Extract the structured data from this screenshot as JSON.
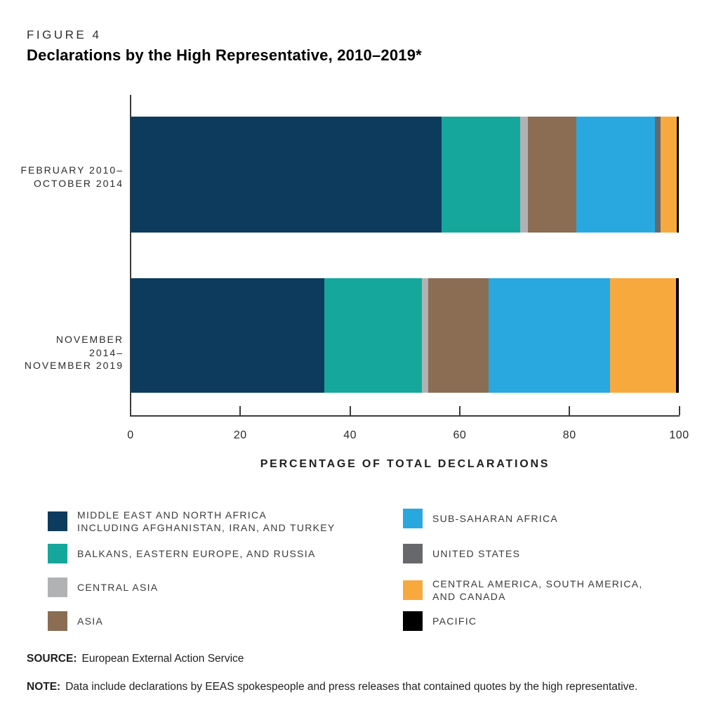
{
  "figure": {
    "label": "FIGURE 4",
    "title": "Declarations by the High Representative, 2010–2019*"
  },
  "chart_data": {
    "type": "bar",
    "orientation": "horizontal",
    "stacked": true,
    "title": "Declarations by the High Representative, 2010–2019*",
    "xlabel": "PERCENTAGE OF TOTAL DECLARATIONS",
    "xlim": [
      0,
      100
    ],
    "xticks": [
      0,
      20,
      40,
      60,
      80,
      100
    ],
    "grid": false,
    "categories": [
      [
        "FEBRUARY 2010–",
        "OCTOBER 2014"
      ],
      [
        "NOVEMBER 2014–",
        "NOVEMBER 2019"
      ]
    ],
    "series": [
      {
        "name": "MIDDLE EAST AND NORTH AFRICA INCLUDING AFGHANISTAN, IRAN, AND TURKEY",
        "color": "#0d3b5e",
        "values": [
          56.7,
          35.4
        ]
      },
      {
        "name": "BALKANS, EASTERN EUROPE, AND RUSSIA",
        "color": "#16a79c",
        "values": [
          14.4,
          17.7
        ]
      },
      {
        "name": "CENTRAL ASIA",
        "color": "#b0b2b4",
        "values": [
          1.4,
          1.2
        ]
      },
      {
        "name": "ASIA",
        "color": "#8a6d53",
        "values": [
          8.8,
          11.0
        ]
      },
      {
        "name": "SUB-SAHARAN AFRICA",
        "color": "#29a8e0",
        "values": [
          14.4,
          22.2
        ]
      },
      {
        "name": "UNITED STATES",
        "color": "#66686b",
        "values": [
          1.0,
          0
        ]
      },
      {
        "name": "CENTRAL AMERICA, SOUTH AMERICA, AND CANADA",
        "color": "#f8a93e",
        "values": [
          2.9,
          12.0
        ]
      },
      {
        "name": "PACIFIC",
        "color": "#000000",
        "values": [
          0.4,
          0.5
        ]
      }
    ],
    "legend_position": "bottom-two-columns"
  },
  "legend": {
    "left": [
      {
        "series": 0,
        "lines": [
          "MIDDLE EAST AND NORTH AFRICA",
          "INCLUDING AFGHANISTAN, IRAN, AND TURKEY"
        ]
      },
      {
        "series": 1,
        "lines": [
          "BALKANS, EASTERN EUROPE, AND RUSSIA"
        ]
      },
      {
        "series": 2,
        "lines": [
          "CENTRAL ASIA"
        ]
      },
      {
        "series": 3,
        "lines": [
          "ASIA"
        ]
      }
    ],
    "right": [
      {
        "series": 4,
        "lines": [
          "SUB-SAHARAN AFRICA"
        ]
      },
      {
        "series": 5,
        "lines": [
          "UNITED STATES"
        ]
      },
      {
        "series": 6,
        "lines": [
          "CENTRAL AMERICA, SOUTH AMERICA,",
          "AND CANADA"
        ]
      },
      {
        "series": 7,
        "lines": [
          "PACIFIC"
        ]
      }
    ]
  },
  "source": {
    "label": "SOURCE:",
    "text": "European External Action Service"
  },
  "note": {
    "label": "NOTE:",
    "text": "Data include declarations by EEAS spokespeople and press releases that contained quotes by the high representative."
  }
}
